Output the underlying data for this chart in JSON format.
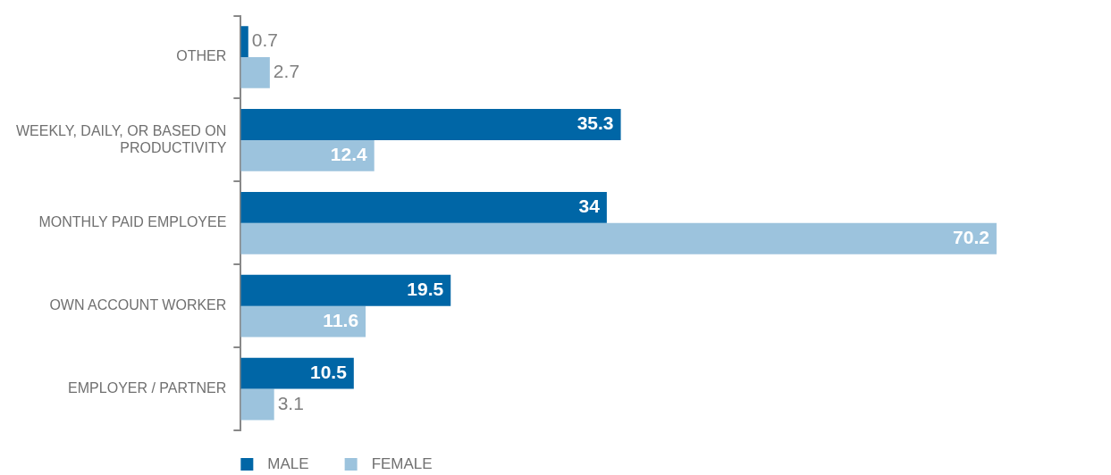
{
  "chart_data": {
    "type": "bar",
    "orientation": "horizontal",
    "categories": [
      "OTHER",
      "WEEKLY, DAILY, OR BASED ON PRODUCTIVITY",
      "MONTHLY PAID EMPLOYEE",
      "OWN ACCOUNT WORKER",
      "EMPLOYER / PARTNER"
    ],
    "series": [
      {
        "name": "MALE",
        "color": "#0066a6",
        "values": [
          0.7,
          35.3,
          34,
          19.5,
          10.5
        ]
      },
      {
        "name": "FEMALE",
        "color": "#9cc3dd",
        "values": [
          2.7,
          12.4,
          70.2,
          11.6,
          3.1
        ]
      }
    ],
    "data_labels": true,
    "legend": "bottom left",
    "tick_labels": "y"
  }
}
